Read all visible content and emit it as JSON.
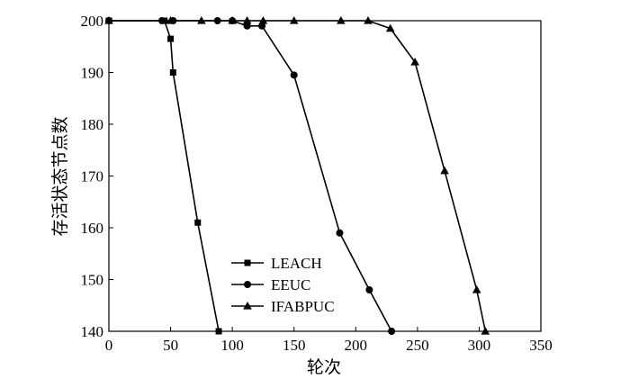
{
  "chart_data": {
    "type": "line",
    "title": "",
    "xlabel": "轮次",
    "ylabel": "存活状态节点数",
    "xlim": [
      0,
      350
    ],
    "ylim": [
      140,
      200
    ],
    "xticks": [
      0,
      50,
      100,
      150,
      200,
      250,
      300,
      350
    ],
    "yticks": [
      140,
      150,
      160,
      170,
      180,
      190,
      200
    ],
    "grid": false,
    "legend_position": "bottom-left",
    "series": [
      {
        "name": "LEACH",
        "marker": "square",
        "x": [
          0,
          45,
          50,
          52,
          72,
          89
        ],
        "y": [
          200,
          200,
          196.5,
          190,
          161,
          140
        ]
      },
      {
        "name": "EEUC",
        "marker": "circle",
        "x": [
          0,
          43,
          52,
          88,
          100,
          112,
          124,
          150,
          187,
          211,
          229
        ],
        "y": [
          200,
          200,
          200,
          200,
          200,
          199,
          199,
          189.5,
          159,
          148,
          140
        ]
      },
      {
        "name": "IFABPUC",
        "marker": "triangle",
        "x": [
          0,
          50,
          75,
          100,
          112,
          125,
          150,
          188,
          210,
          228,
          248,
          272,
          298,
          305
        ],
        "y": [
          200,
          200,
          200,
          200,
          200,
          200,
          200,
          200,
          200,
          198.5,
          192,
          171,
          148,
          140
        ]
      }
    ]
  }
}
